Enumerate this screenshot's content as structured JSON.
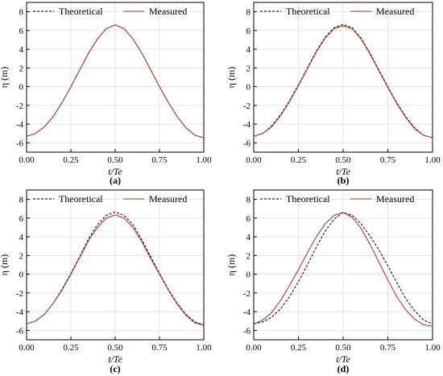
{
  "colors": {
    "theoretical": "#000000",
    "measured": "#c0392b",
    "axis": "#000000",
    "grid": "#dcdcdc"
  },
  "chart_data": [
    {
      "type": "line",
      "caption": "(a)",
      "xlabel": "t/Te",
      "ylabel": "η (m)",
      "xlim": [
        0,
        1
      ],
      "ylim": [
        -7,
        9
      ],
      "xticks": [
        "0.00",
        "0.25",
        "0.50",
        "0.75",
        "1.00"
      ],
      "yticks": [
        "-6",
        "-4",
        "-2",
        "0",
        "2",
        "4",
        "6",
        "8"
      ],
      "legend_position": "top",
      "x": [
        0,
        0.05,
        0.1,
        0.15,
        0.2,
        0.25,
        0.3,
        0.35,
        0.4,
        0.45,
        0.5,
        0.55,
        0.6,
        0.65,
        0.7,
        0.75,
        0.8,
        0.85,
        0.9,
        0.95,
        1.0
      ],
      "series": [
        {
          "name": "Theoretical",
          "style": "dashed",
          "values": [
            -5.3,
            -5.0,
            -4.3,
            -3.2,
            -1.7,
            0.0,
            1.8,
            3.6,
            5.1,
            6.2,
            6.6,
            6.2,
            5.1,
            3.6,
            1.8,
            0.0,
            -1.7,
            -3.2,
            -4.4,
            -5.2,
            -5.45
          ]
        },
        {
          "name": "Measured",
          "style": "solid",
          "values": [
            -5.3,
            -5.0,
            -4.3,
            -3.2,
            -1.7,
            0.0,
            1.8,
            3.6,
            5.1,
            6.2,
            6.6,
            6.2,
            5.1,
            3.6,
            1.8,
            0.0,
            -1.7,
            -3.2,
            -4.4,
            -5.2,
            -5.45
          ]
        }
      ]
    },
    {
      "type": "line",
      "caption": "(b)",
      "xlabel": "t/Te",
      "ylabel": "η (m)",
      "xlim": [
        0,
        1
      ],
      "ylim": [
        -7,
        9
      ],
      "xticks": [
        "0.00",
        "0.25",
        "0.50",
        "0.75",
        "1.00"
      ],
      "yticks": [
        "-6",
        "-4",
        "-2",
        "0",
        "2",
        "4",
        "6",
        "8"
      ],
      "legend_position": "top",
      "x": [
        0,
        0.05,
        0.1,
        0.15,
        0.2,
        0.25,
        0.3,
        0.35,
        0.4,
        0.45,
        0.5,
        0.55,
        0.6,
        0.65,
        0.7,
        0.75,
        0.8,
        0.85,
        0.9,
        0.95,
        1.0
      ],
      "series": [
        {
          "name": "Theoretical",
          "style": "dashed",
          "values": [
            -5.3,
            -5.0,
            -4.2,
            -3.0,
            -1.5,
            0.2,
            2.0,
            3.8,
            5.3,
            6.3,
            6.65,
            6.3,
            5.2,
            3.6,
            1.8,
            0.0,
            -1.7,
            -3.2,
            -4.4,
            -5.2,
            -5.45
          ]
        },
        {
          "name": "Measured",
          "style": "solid",
          "values": [
            -5.3,
            -5.0,
            -4.3,
            -3.1,
            -1.6,
            0.1,
            1.9,
            3.7,
            5.2,
            6.2,
            6.5,
            6.2,
            5.1,
            3.5,
            1.7,
            -0.1,
            -1.8,
            -3.3,
            -4.5,
            -5.2,
            -5.45
          ]
        }
      ]
    },
    {
      "type": "line",
      "caption": "(c)",
      "xlabel": "t/Te",
      "ylabel": "η (m)",
      "xlim": [
        0,
        1
      ],
      "ylim": [
        -7,
        9
      ],
      "xticks": [
        "0.00",
        "0.25",
        "0.50",
        "0.75",
        "1.00"
      ],
      "yticks": [
        "-6",
        "-4",
        "-2",
        "0",
        "2",
        "4",
        "6",
        "8"
      ],
      "legend_position": "top",
      "x": [
        0,
        0.05,
        0.1,
        0.15,
        0.2,
        0.25,
        0.3,
        0.35,
        0.4,
        0.45,
        0.5,
        0.55,
        0.6,
        0.65,
        0.7,
        0.75,
        0.8,
        0.85,
        0.9,
        0.95,
        1.0
      ],
      "series": [
        {
          "name": "Theoretical",
          "style": "dashed",
          "values": [
            -5.3,
            -5.0,
            -4.3,
            -3.1,
            -1.6,
            0.1,
            1.9,
            3.8,
            5.3,
            6.3,
            6.65,
            6.3,
            5.3,
            3.7,
            1.9,
            0.1,
            -1.6,
            -3.1,
            -4.3,
            -5.1,
            -5.4
          ]
        },
        {
          "name": "Measured",
          "style": "solid",
          "values": [
            -5.3,
            -5.0,
            -4.3,
            -3.1,
            -1.7,
            0.0,
            1.8,
            3.6,
            5.0,
            6.0,
            6.35,
            6.0,
            5.0,
            3.5,
            1.7,
            0.0,
            -1.7,
            -3.2,
            -4.4,
            -5.2,
            -5.45
          ]
        }
      ]
    },
    {
      "type": "line",
      "caption": "(d)",
      "xlabel": "t/Te",
      "ylabel": "η (m)",
      "xlim": [
        0,
        1
      ],
      "ylim": [
        -7,
        9
      ],
      "xticks": [
        "0.00",
        "0.25",
        "0.50",
        "0.75",
        "1.00"
      ],
      "yticks": [
        "-6",
        "-4",
        "-2",
        "0",
        "2",
        "4",
        "6",
        "8"
      ],
      "legend_position": "top",
      "x": [
        0,
        0.05,
        0.1,
        0.15,
        0.2,
        0.25,
        0.3,
        0.35,
        0.4,
        0.45,
        0.5,
        0.55,
        0.6,
        0.65,
        0.7,
        0.75,
        0.8,
        0.85,
        0.9,
        0.95,
        1.0
      ],
      "series": [
        {
          "name": "Theoretical",
          "style": "dashed",
          "values": [
            -5.3,
            -5.1,
            -4.6,
            -3.7,
            -2.4,
            -0.8,
            1.0,
            2.9,
            4.6,
            5.9,
            6.6,
            6.3,
            5.4,
            4.1,
            2.6,
            0.9,
            -0.9,
            -2.6,
            -3.9,
            -4.9,
            -5.3
          ]
        },
        {
          "name": "Measured",
          "style": "solid",
          "values": [
            -5.3,
            -4.9,
            -4.1,
            -2.8,
            -1.2,
            0.5,
            2.3,
            4.0,
            5.4,
            6.3,
            6.6,
            6.1,
            4.9,
            3.2,
            1.3,
            -0.6,
            -2.4,
            -3.8,
            -4.8,
            -5.4,
            -5.55
          ]
        }
      ]
    }
  ]
}
